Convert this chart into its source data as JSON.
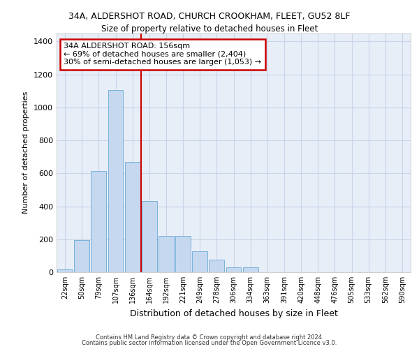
{
  "title_line1": "34A, ALDERSHOT ROAD, CHURCH CROOKHAM, FLEET, GU52 8LF",
  "title_line2": "Size of property relative to detached houses in Fleet",
  "xlabel": "Distribution of detached houses by size in Fleet",
  "ylabel": "Number of detached properties",
  "categories": [
    "22sqm",
    "50sqm",
    "79sqm",
    "107sqm",
    "136sqm",
    "164sqm",
    "192sqm",
    "221sqm",
    "249sqm",
    "278sqm",
    "306sqm",
    "334sqm",
    "363sqm",
    "391sqm",
    "420sqm",
    "448sqm",
    "476sqm",
    "505sqm",
    "533sqm",
    "562sqm",
    "590sqm"
  ],
  "values": [
    15,
    195,
    615,
    1105,
    670,
    430,
    220,
    220,
    125,
    75,
    30,
    30,
    0,
    0,
    0,
    0,
    0,
    0,
    0,
    0,
    0
  ],
  "bar_color": "#c5d8f0",
  "bar_edge_color": "#6aaad4",
  "grid_color": "#c8d4e8",
  "background_color": "#e8eef8",
  "annotation_text": "34A ALDERSHOT ROAD: 156sqm\n← 69% of detached houses are smaller (2,404)\n30% of semi-detached houses are larger (1,053) →",
  "annotation_box_color": "#ffffff",
  "annotation_box_edge": "#cc0000",
  "vline_x": 4.5,
  "vline_color": "#cc0000",
  "ylim": [
    0,
    1450
  ],
  "yticks": [
    0,
    200,
    400,
    600,
    800,
    1000,
    1200,
    1400
  ],
  "footer_line1": "Contains HM Land Registry data © Crown copyright and database right 2024.",
  "footer_line2": "Contains public sector information licensed under the Open Government Licence v3.0."
}
